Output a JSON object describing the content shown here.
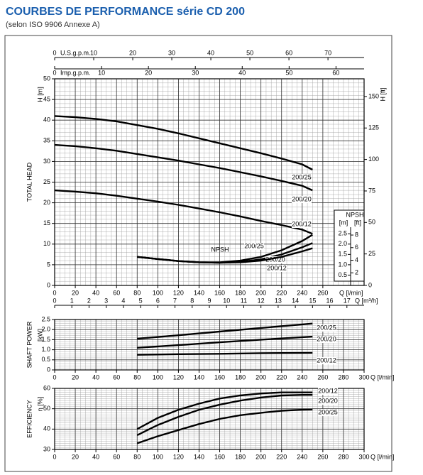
{
  "header": {
    "title": "COURBES DE PERFORMANCE série CD 200",
    "subtitle": "(selon ISO 9906 Annexe A)"
  },
  "chart_data": [
    {
      "type": "line",
      "y_label": "H [m]",
      "side_label": "TOTAL HEAD",
      "y2_label": "H [ft]",
      "x_label": "Q [l/min]",
      "xlim": [
        0,
        300
      ],
      "xticks": [
        0,
        20,
        40,
        60,
        80,
        100,
        120,
        140,
        160,
        180,
        200,
        220,
        240,
        260
      ],
      "ylim": [
        0,
        50
      ],
      "yticks": [
        0,
        5,
        10,
        15,
        20,
        25,
        30,
        35,
        40,
        45,
        50
      ],
      "y2lim": [
        0,
        164.04
      ],
      "y2ticks": [
        0,
        25,
        50,
        75,
        100,
        125,
        150
      ],
      "grid": true,
      "minor_grid": [
        5,
        1
      ],
      "top_axes": [
        {
          "label": "U.S.g.p.m.",
          "lim": [
            0,
            79.25
          ],
          "ticks": [
            0,
            10,
            20,
            30,
            40,
            50,
            60,
            70
          ]
        },
        {
          "label": "Imp.g.p.m.",
          "lim": [
            0,
            65.99
          ],
          "ticks": [
            0,
            10,
            20,
            30,
            40,
            50,
            60
          ]
        }
      ],
      "x": [
        0,
        20,
        40,
        60,
        80,
        100,
        120,
        140,
        160,
        180,
        200,
        220,
        240,
        250
      ],
      "series": [
        {
          "name": "200/25",
          "color": "#000000",
          "values": [
            41,
            40.7,
            40.3,
            39.7,
            38.8,
            37.9,
            36.8,
            35.6,
            34.4,
            33.2,
            32.0,
            30.7,
            29.3,
            28.0
          ]
        },
        {
          "name": "200/20",
          "color": "#000000",
          "values": [
            34,
            33.7,
            33.2,
            32.6,
            31.8,
            31,
            30.2,
            29.3,
            28.4,
            27.4,
            26.4,
            25.3,
            24.1,
            23.0
          ]
        },
        {
          "name": "200/12",
          "color": "#000000",
          "values": [
            23,
            22.7,
            22.3,
            21.7,
            21,
            20.3,
            19.5,
            18.6,
            17.7,
            16.7,
            15.6,
            14.6,
            13.5,
            12.5
          ]
        },
        {
          "name": "200/25",
          "color": "#000000",
          "axis": "npsh",
          "x": [
            80,
            100,
            120,
            140,
            160,
            180,
            200,
            220,
            240,
            250
          ],
          "values": [
            1.38,
            1.28,
            1.18,
            1.12,
            1.12,
            1.2,
            1.38,
            1.7,
            2.15,
            2.45
          ]
        },
        {
          "name": "200/20",
          "color": "#000000",
          "axis": "npsh",
          "x": [
            80,
            100,
            120,
            140,
            160,
            180,
            200,
            220,
            240,
            250
          ],
          "values": [
            1.38,
            1.28,
            1.18,
            1.12,
            1.1,
            1.14,
            1.26,
            1.5,
            1.85,
            2.05
          ]
        },
        {
          "name": "200/12",
          "color": "#000000",
          "axis": "npsh",
          "x": [
            80,
            100,
            120,
            140,
            160,
            180,
            200,
            220,
            240,
            250
          ],
          "values": [
            1.38,
            1.28,
            1.18,
            1.12,
            1.1,
            1.12,
            1.2,
            1.38,
            1.65,
            1.8
          ]
        }
      ],
      "npsh": {
        "title": "NPSH",
        "annotation": "NPSH",
        "units": [
          "[m]",
          "[ft]"
        ],
        "ylim": [
          0,
          10
        ],
        "yticks": [
          0.5,
          {
            "value": 1,
            "label": "1.0"
          },
          1.5,
          {
            "value": 2,
            "label": "2.0"
          },
          2.5
        ],
        "y2lim": [
          0,
          32.81
        ],
        "y2ticks": [
          2,
          4,
          6,
          8
        ]
      }
    },
    {
      "type": "line",
      "side_label": "SHAFT POWER",
      "y_label": "[kW]",
      "x_label": "Q [l/min]",
      "xlim": [
        0,
        300
      ],
      "xticks": [
        0,
        20,
        40,
        60,
        80,
        100,
        120,
        140,
        160,
        180,
        200,
        220,
        240,
        260,
        280,
        300
      ],
      "ylim": [
        0,
        2.5
      ],
      "yticks": [
        0,
        0.5,
        {
          "value": 1,
          "label": "1.0"
        },
        1.5,
        {
          "value": 2,
          "label": "2.0"
        },
        2.5
      ],
      "grid": true,
      "minor_grid": [
        5,
        0.1
      ],
      "top_axes": [
        {
          "label": "Q [m³/h]",
          "lim": [
            0,
            18
          ],
          "ticks": [
            0,
            1,
            2,
            3,
            4,
            5,
            6,
            7,
            8,
            9,
            10,
            11,
            12,
            13,
            14,
            15,
            16,
            17
          ]
        }
      ],
      "x": [
        80,
        120,
        160,
        200,
        250
      ],
      "series": [
        {
          "name": "200/25",
          "color": "#000000",
          "values": [
            1.55,
            1.72,
            1.9,
            2.08,
            2.3
          ]
        },
        {
          "name": "200/20",
          "color": "#000000",
          "values": [
            1.1,
            1.23,
            1.37,
            1.5,
            1.65
          ]
        },
        {
          "name": "200/12",
          "color": "#000000",
          "values": [
            0.75,
            0.78,
            0.8,
            0.83,
            0.85
          ]
        }
      ]
    },
    {
      "type": "line",
      "side_label": "EFFICIENCY",
      "y_label": "η [%]",
      "x_label": "Q [l/min]",
      "xlim": [
        0,
        300
      ],
      "xticks": [
        0,
        20,
        40,
        60,
        80,
        100,
        120,
        140,
        160,
        180,
        200,
        220,
        240,
        260,
        280,
        300
      ],
      "ylim": [
        30,
        60
      ],
      "yticks": [
        30,
        40,
        50,
        60
      ],
      "grid": true,
      "minor_grid": [
        5,
        1
      ],
      "x": [
        80,
        100,
        120,
        140,
        160,
        180,
        200,
        220,
        240,
        250
      ],
      "series": [
        {
          "name": "200/12",
          "color": "#000000",
          "values": [
            40,
            45.5,
            49.5,
            52.5,
            55,
            56.5,
            57.5,
            58,
            58,
            58
          ]
        },
        {
          "name": "200/20",
          "color": "#000000",
          "values": [
            37,
            42,
            46,
            49.5,
            52,
            54,
            55.5,
            56.5,
            56.8,
            56.8
          ]
        },
        {
          "name": "200/25",
          "color": "#000000",
          "values": [
            33,
            36.5,
            39.5,
            42.5,
            45,
            46.8,
            48,
            49,
            49.5,
            49.6
          ]
        }
      ]
    }
  ]
}
